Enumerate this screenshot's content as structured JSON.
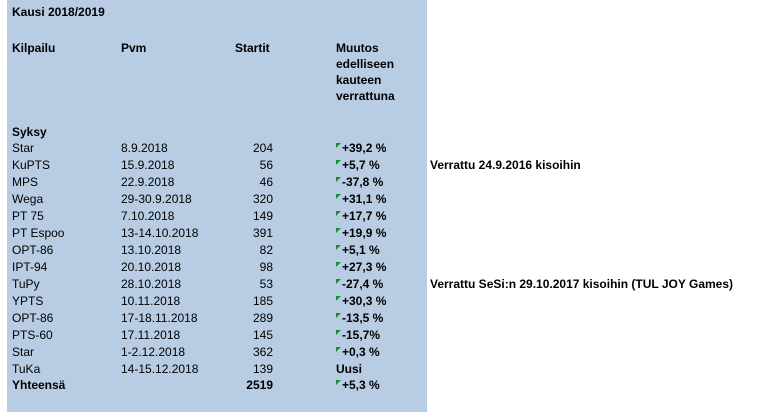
{
  "season_title": "Kausi 2018/2019",
  "headers": {
    "competition": "Kilpailu",
    "date": "Pvm",
    "starts": "Startit",
    "change_lines": [
      "Muutos",
      "edelliseen",
      "kauteen",
      "verrattuna"
    ]
  },
  "section": "Syksy",
  "rows": [
    {
      "competition": "Star",
      "date": "8.9.2018",
      "starts": "204",
      "change": "+39,2 %"
    },
    {
      "competition": "KuPTS",
      "date": "15.9.2018",
      "starts": "56",
      "change": "+5,7 %"
    },
    {
      "competition": "MPS",
      "date": "22.9.2018",
      "starts": "46",
      "change": "-37,8 %"
    },
    {
      "competition": "Wega",
      "date": "29-30.9.2018",
      "starts": "320",
      "change": "+31,1 %"
    },
    {
      "competition": "PT 75",
      "date": "7.10.2018",
      "starts": "149",
      "change": "+17,7 %"
    },
    {
      "competition": "PT Espoo",
      "date": "13-14.10.2018",
      "starts": "391",
      "change": "+19,9 %"
    },
    {
      "competition": "OPT-86",
      "date": "13.10.2018",
      "starts": "82",
      "change": "+5,1 %"
    },
    {
      "competition": "IPT-94",
      "date": "20.10.2018",
      "starts": "98",
      "change": "+27,3 %"
    },
    {
      "competition": "TuPy",
      "date": "28.10.2018",
      "starts": "53",
      "change": "-27,4 %"
    },
    {
      "competition": "YPTS",
      "date": "10.11.2018",
      "starts": "185",
      "change": "+30,3 %"
    },
    {
      "competition": "OPT-86",
      "date": "17-18.11.2018",
      "starts": "289",
      "change": "-13,5 %"
    },
    {
      "competition": "PTS-60",
      "date": "17.11.2018",
      "starts": "145",
      "change": "-15,7%"
    },
    {
      "competition": "Star",
      "date": "1-2.12.2018",
      "starts": "362",
      "change": "+0,3 %"
    },
    {
      "competition": "TuKa",
      "date": "14-15.12.2018",
      "starts": "139",
      "change": "Uusi"
    }
  ],
  "total": {
    "label": "Yhteensä",
    "starts": "2519",
    "change": "+5,3 %"
  },
  "notes": [
    {
      "row": 1,
      "text": "Verrattu 24.9.2016 kisoihin"
    },
    {
      "row": 8,
      "text": "Verrattu SeSi:n 29.10.2017 kisoihin (TUL JOY Games)"
    }
  ]
}
